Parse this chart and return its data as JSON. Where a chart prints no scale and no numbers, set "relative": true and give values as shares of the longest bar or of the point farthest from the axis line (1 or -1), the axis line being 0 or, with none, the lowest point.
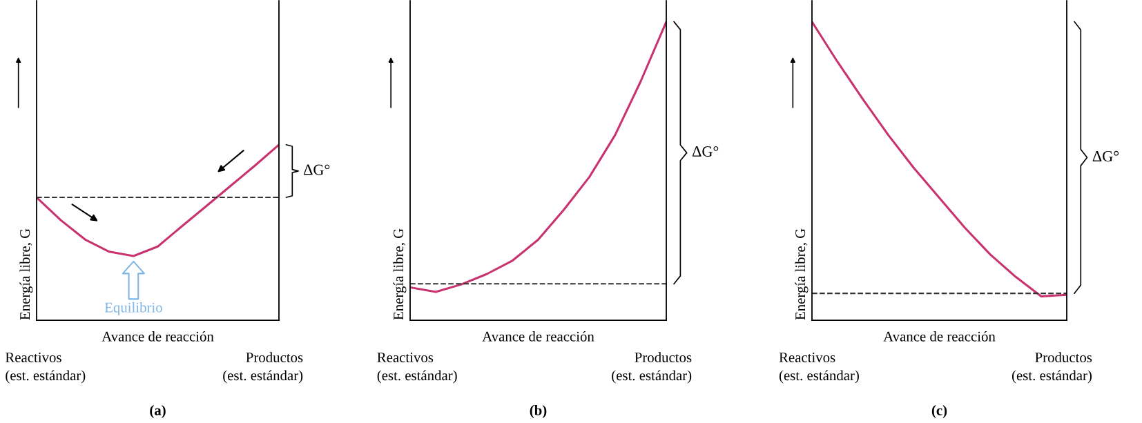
{
  "chart_data": [
    {
      "type": "line",
      "title": "(a)",
      "relative": true,
      "xlabel": "Avance de reacción",
      "ylabel": "Energía libre, G",
      "grid": false,
      "marker": "none",
      "line_style": "solid",
      "categories": [
        null,
        null,
        null,
        null,
        null,
        null,
        null,
        null,
        null,
        null,
        null
      ],
      "series": [
        {
          "color": "#c8326e",
          "values": [
            0.7,
            0.57,
            0.46,
            0.39,
            0.366,
            0.42,
            0.536,
            0.65,
            0.765,
            0.88,
            1.0
          ]
        }
      ],
      "ref_lines": [
        {
          "axis": "y",
          "value": 0.7,
          "line_style": "dashed",
          "color": "#333333"
        }
      ],
      "annotations": [
        "ΔG°",
        "Reactivos\n(est. estándar)",
        "Productos\n(est. estándar)",
        "Equilibrio"
      ]
    },
    {
      "type": "line",
      "title": "(b)",
      "relative": true,
      "xlabel": "Avance de reacción",
      "ylabel": "Energía libre, G",
      "grid": false,
      "marker": "none",
      "line_style": "solid",
      "categories": [
        null,
        null,
        null,
        null,
        null,
        null,
        null,
        null,
        null,
        null,
        null
      ],
      "series": [
        {
          "color": "#c8326e",
          "values": [
            0.11,
            0.095,
            0.12,
            0.155,
            0.2,
            0.27,
            0.37,
            0.48,
            0.62,
            0.8,
            1.0
          ]
        }
      ],
      "ref_lines": [
        {
          "axis": "y",
          "value": 0.122,
          "line_style": "dashed",
          "color": "#333333"
        }
      ],
      "annotations": [
        "ΔG°",
        "Reactivos\n(est. estándar)",
        "Productos\n(est. estándar)"
      ]
    },
    {
      "type": "line",
      "title": "(c)",
      "relative": true,
      "xlabel": "Avance de reacción",
      "ylabel": "Energía libre, G",
      "grid": false,
      "marker": "none",
      "line_style": "solid",
      "categories": [
        null,
        null,
        null,
        null,
        null,
        null,
        null,
        null,
        null,
        null,
        null
      ],
      "series": [
        {
          "color": "#c8326e",
          "values": [
            1.0,
            0.866,
            0.74,
            0.62,
            0.51,
            0.41,
            0.31,
            0.22,
            0.145,
            0.08,
            0.085
          ]
        }
      ],
      "ref_lines": [
        {
          "axis": "y",
          "value": 0.09,
          "line_style": "dashed",
          "color": "#333333"
        }
      ],
      "annotations": [
        "ΔG°",
        "Reactivos\n(est. estándar)",
        "Productos\n(est. estándar)"
      ]
    }
  ]
}
